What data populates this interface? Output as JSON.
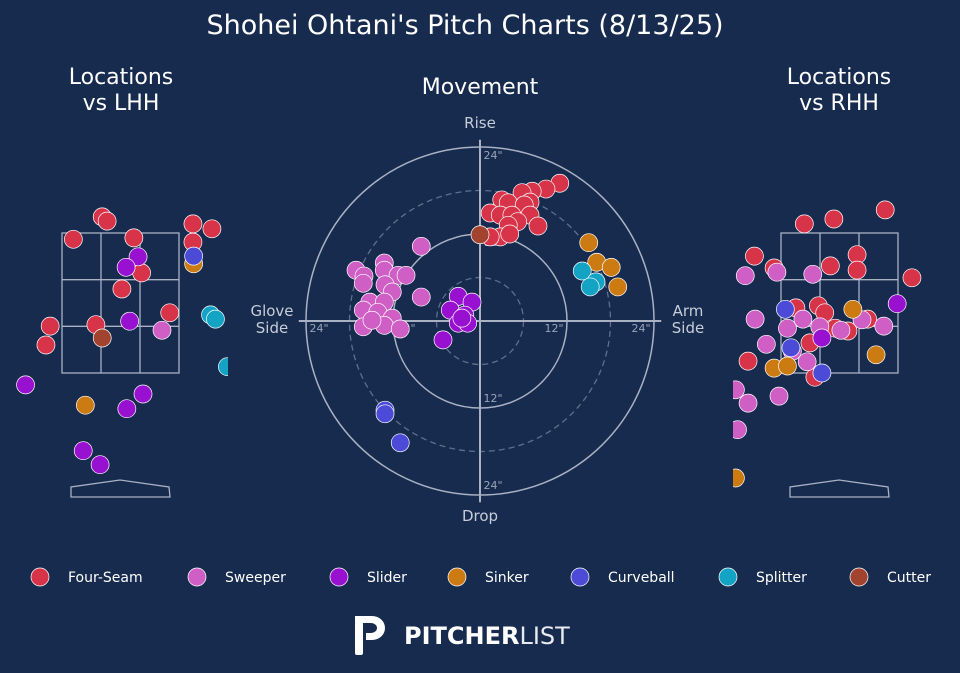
{
  "title": "Shohei Ohtani's Pitch Charts (8/13/25)",
  "logo": [
    "PITCHER",
    "LIST"
  ],
  "chart_data": [
    {
      "type": "scatter",
      "title": "Locations\nvs LHH",
      "xlim": [
        -1.5,
        1.5
      ],
      "ylim": [
        -0.5,
        4.7
      ],
      "series": [
        {
          "name": "Four-Seam",
          "color": "#d7344a",
          "x": [
            -0.26,
            -0.19,
            -0.67,
            0.19,
            1.03,
            1.3,
            1.03,
            0.3,
            0.02,
            0.7,
            -1.0,
            -0.35,
            -1.06
          ],
          "values": [
            3.73,
            3.67,
            3.41,
            3.43,
            3.63,
            3.56,
            3.37,
            2.93,
            2.7,
            2.36,
            2.17,
            2.19,
            1.9
          ]
        },
        {
          "name": "Sweeper",
          "color": "#cf5fc4",
          "x": [
            0.59
          ],
          "values": [
            2.11
          ]
        },
        {
          "name": "Slider",
          "color": "#9810d0",
          "x": [
            0.25,
            0.08,
            0.13,
            -1.35,
            0.32,
            0.09,
            -0.53,
            -0.29
          ],
          "values": [
            3.16,
            3.01,
            2.24,
            1.33,
            1.2,
            0.99,
            0.39,
            0.19
          ]
        },
        {
          "name": "Sinker",
          "color": "#cc7a12",
          "x": [
            1.04,
            -0.5
          ],
          "values": [
            3.06,
            1.04
          ]
        },
        {
          "name": "Curveball",
          "color": "#4b4bd7",
          "x": [
            1.04
          ],
          "values": [
            3.17
          ]
        },
        {
          "name": "Splitter",
          "color": "#13a3c4",
          "x": [
            1.28,
            1.35,
            1.52
          ],
          "values": [
            2.33,
            2.27,
            1.59
          ]
        },
        {
          "name": "Cutter",
          "color": "#a2432f",
          "x": [
            -0.26
          ],
          "values": [
            2.0
          ]
        }
      ]
    },
    {
      "type": "scatter",
      "title": "Movement",
      "xlim": [
        -25,
        25
      ],
      "ylim": [
        -25,
        25
      ],
      "x_label_negative": "Glove\nSide",
      "x_label_positive": "Arm\nSide",
      "y_label_positive": "Rise",
      "y_label_negative": "Drop",
      "xticks": [
        {
          "value": -24,
          "label": "24\""
        },
        {
          "value": -12,
          "label": "12\""
        },
        {
          "value": 12,
          "label": "12\""
        },
        {
          "value": 24,
          "label": "24\""
        }
      ],
      "yticks": [
        {
          "value": -24,
          "label": "24\""
        },
        {
          "value": -12,
          "label": "12\""
        },
        {
          "value": 12,
          "label": "12\""
        },
        {
          "value": 24,
          "label": "24\""
        }
      ],
      "series": [
        {
          "name": "Four-Seam",
          "color": "#d7344a",
          "x": [
            11.0,
            9.1,
            7.2,
            5.8,
            3.0,
            3.9,
            6.9,
            6.1,
            1.4,
            2.8,
            4.4,
            6.9,
            5.2,
            8.0,
            3.9,
            2.8,
            4.1,
            1.4
          ],
          "values": [
            19.0,
            18.2,
            17.9,
            17.7,
            16.7,
            16.3,
            16.4,
            16.0,
            14.9,
            14.6,
            14.6,
            14.6,
            13.7,
            13.1,
            13.2,
            11.6,
            12.0,
            11.6
          ]
        },
        {
          "name": "Sweeper",
          "color": "#cf5fc4",
          "x": [
            -8.1,
            -13.2,
            -17.1,
            -16.0,
            -13.2,
            -11.3,
            -10.2,
            -16.1,
            -13.1,
            -12.1,
            -8.1,
            -15.2,
            -13.2,
            -16.1,
            -14.1,
            -12.1,
            -13.2,
            -16.1,
            -11.0,
            -14.9
          ],
          "values": [
            10.3,
            8.0,
            7.0,
            6.2,
            7.0,
            6.3,
            6.3,
            5.2,
            5.0,
            4.0,
            3.3,
            2.6,
            2.6,
            1.5,
            1.2,
            0.4,
            -0.6,
            -0.8,
            -1.1,
            0.1
          ]
        },
        {
          "name": "Slider",
          "color": "#9810d0",
          "x": [
            -3.0,
            -1.1,
            -4.1,
            -2.1,
            -3.0,
            -1.7,
            -5.1,
            -2.5
          ],
          "values": [
            3.4,
            2.6,
            1.5,
            0.8,
            -0.3,
            -0.3,
            -2.6,
            0.4
          ]
        },
        {
          "name": "Sinker",
          "color": "#cc7a12",
          "x": [
            15.0,
            16.1,
            18.1,
            19.0
          ],
          "values": [
            10.8,
            8.1,
            7.4,
            4.7
          ]
        },
        {
          "name": "Curveball",
          "color": "#4b4bd7",
          "x": [
            -13.1,
            -13.1,
            -11.0
          ],
          "values": [
            -12.3,
            -12.8,
            -16.8
          ]
        },
        {
          "name": "Splitter",
          "color": "#13a3c4",
          "x": [
            14.1,
            16.0,
            15.2
          ],
          "values": [
            6.9,
            5.4,
            4.7
          ]
        },
        {
          "name": "Cutter",
          "color": "#a2432f",
          "x": [
            0.0
          ],
          "values": [
            11.9
          ]
        }
      ]
    },
    {
      "type": "scatter",
      "title": "Locations\nvs RHH",
      "xlim": [
        -1.5,
        1.5
      ],
      "ylim": [
        -0.5,
        4.7
      ],
      "series": [
        {
          "name": "Four-Seam",
          "color": "#d7344a",
          "x": [
            -0.5,
            -0.08,
            0.65,
            -1.21,
            -0.93,
            -0.13,
            0.25,
            0.25,
            1.03,
            -0.62,
            -0.3,
            -0.21,
            -0.06,
            -0.42,
            0.12,
            0.4,
            -1.3,
            -0.35
          ],
          "values": [
            3.63,
            3.7,
            3.83,
            3.17,
            3.0,
            3.03,
            3.19,
            2.97,
            2.86,
            2.43,
            2.46,
            2.36,
            2.14,
            1.93,
            2.1,
            2.27,
            1.67,
            1.44
          ]
        },
        {
          "name": "Sweeper",
          "color": "#cf5fc4",
          "x": [
            -1.34,
            -0.89,
            -0.38,
            -1.2,
            -0.74,
            -0.52,
            -0.28,
            0.02,
            0.32,
            0.63,
            -1.04,
            -0.67,
            -0.46,
            -1.3,
            -0.86,
            -1.45,
            -1.48
          ],
          "values": [
            2.89,
            2.94,
            2.91,
            2.27,
            2.14,
            2.27,
            2.16,
            2.11,
            2.26,
            2.17,
            1.91,
            1.81,
            1.66,
            1.07,
            1.17,
            0.69,
            1.26
          ]
        },
        {
          "name": "Slider",
          "color": "#9810d0",
          "x": [
            0.82,
            -0.25
          ],
          "values": [
            2.49,
            2.0
          ]
        },
        {
          "name": "Sinker",
          "color": "#cc7a12",
          "x": [
            0.19,
            -0.93,
            -0.74,
            0.52,
            -1.48
          ],
          "values": [
            2.41,
            1.57,
            1.6,
            1.76,
            0.0
          ]
        },
        {
          "name": "Curveball",
          "color": "#4b4bd7",
          "x": [
            -0.77,
            -0.69,
            -0.25
          ],
          "values": [
            2.41,
            1.86,
            1.5
          ]
        },
        {
          "name": "Splitter",
          "color": "#13a3c4",
          "x": [],
          "values": []
        },
        {
          "name": "Cutter",
          "color": "#a2432f",
          "x": [],
          "values": []
        }
      ]
    }
  ]
}
